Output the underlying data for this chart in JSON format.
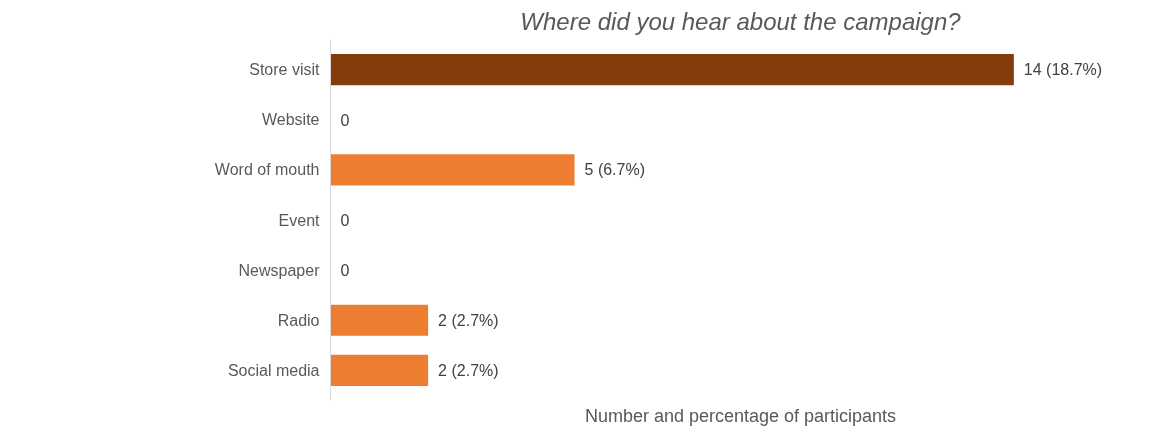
{
  "chart_data": {
    "type": "bar",
    "orientation": "horizontal",
    "title": "Where did you hear about the campaign?",
    "xlabel": "Number and percentage of participants",
    "categories": [
      "Store visit",
      "Website",
      "Word of mouth",
      "Event",
      "Newspaper",
      "Radio",
      "Social media"
    ],
    "values": [
      14,
      0,
      5,
      0,
      0,
      2,
      2
    ],
    "colors": [
      "#843c0c",
      "#ed7d31",
      "#ed7d31",
      "#ed7d31",
      "#ed7d31",
      "#ed7d31",
      "#ed7d31"
    ],
    "value_labels": [
      "14 (18.7%)",
      "0",
      "5 (6.7%)",
      "0",
      "0",
      "2 (2.7%)",
      "2 (2.7%)"
    ],
    "grid": false
  }
}
